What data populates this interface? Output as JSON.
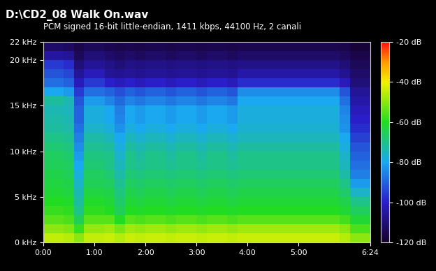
{
  "chart_data": {
    "type": "spectrogram",
    "title": "D:\\CD2_08 Walk On.wav",
    "subtitle": "PCM signed 16-bit little-endian, 1411 kbps, 44100 Hz, 2 canali",
    "x": [
      0,
      12,
      24,
      36,
      48,
      60,
      72,
      84,
      96,
      108,
      120,
      132,
      144,
      156,
      168,
      180,
      192,
      204,
      216,
      228,
      240,
      252,
      264,
      276,
      288,
      300,
      312,
      324,
      336,
      348,
      360,
      372,
      384
    ],
    "y": [
      0,
      1,
      2,
      3,
      4,
      5,
      6,
      7,
      8,
      9,
      10,
      11,
      12,
      13,
      14,
      15,
      16,
      17,
      18,
      19,
      20,
      21,
      22
    ],
    "xlim": [
      0,
      384
    ],
    "xticks": [
      {
        "value": 0,
        "label": "0:00"
      },
      {
        "value": 60,
        "label": "1:00"
      },
      {
        "value": 120,
        "label": "2:00"
      },
      {
        "value": 180,
        "label": "3:00"
      },
      {
        "value": 240,
        "label": "4:00"
      },
      {
        "value": 300,
        "label": "5:00"
      },
      {
        "value": 384,
        "label": "6:24"
      }
    ],
    "ylim": [
      0,
      22
    ],
    "yticks": [
      {
        "value": 0,
        "label": "0 kHz"
      },
      {
        "value": 5,
        "label": "5 kHz"
      },
      {
        "value": 10,
        "label": "10 kHz"
      },
      {
        "value": 15,
        "label": "15 kHz"
      },
      {
        "value": 20,
        "label": "20 kHz"
      },
      {
        "value": 22,
        "label": "22 kHz"
      }
    ],
    "colorbar": {
      "range": [
        -120,
        -20
      ],
      "ticks": [
        {
          "value": -20,
          "label": "-20 dB"
        },
        {
          "value": -40,
          "label": "-40 dB"
        },
        {
          "value": -60,
          "label": "-60 dB"
        },
        {
          "value": -80,
          "label": "-80 dB"
        },
        {
          "value": -100,
          "label": "-100 dB"
        },
        {
          "value": -120,
          "label": "-120 dB"
        }
      ]
    },
    "cells": [
      [
        -45,
        -50,
        -55,
        -58,
        -60,
        -62,
        -63,
        -64,
        -65,
        -66,
        -68,
        -70,
        -72,
        -73,
        -74,
        -72,
        -80,
        -88,
        -92,
        -96,
        -105,
        -112
      ],
      [
        -45,
        -50,
        -55,
        -58,
        -60,
        -62,
        -63,
        -64,
        -65,
        -66,
        -68,
        -70,
        -72,
        -73,
        -74,
        -72,
        -80,
        -88,
        -92,
        -96,
        -105,
        -112
      ],
      [
        -46,
        -51,
        -56,
        -59,
        -61,
        -63,
        -64,
        -65,
        -66,
        -67,
        -69,
        -71,
        -73,
        -74,
        -75,
        -74,
        -82,
        -90,
        -94,
        -98,
        -106,
        -113
      ],
      [
        -50,
        -58,
        -65,
        -70,
        -72,
        -74,
        -76,
        -78,
        -80,
        -82,
        -84,
        -86,
        -88,
        -90,
        -90,
        -92,
        -96,
        -102,
        -106,
        -110,
        -114,
        -116
      ],
      [
        -45,
        -49,
        -55,
        -59,
        -61,
        -63,
        -65,
        -66,
        -68,
        -69,
        -71,
        -73,
        -76,
        -78,
        -78,
        -82,
        -88,
        -96,
        -102,
        -106,
        -110,
        -114
      ],
      [
        -45,
        -49,
        -55,
        -59,
        -61,
        -63,
        -65,
        -66,
        -68,
        -69,
        -71,
        -73,
        -76,
        -78,
        -78,
        -82,
        -88,
        -96,
        -102,
        -106,
        -110,
        -114
      ],
      [
        -44,
        -48,
        -55,
        -60,
        -62,
        -64,
        -66,
        -68,
        -70,
        -70,
        -72,
        -75,
        -78,
        -80,
        -80,
        -85,
        -90,
        -100,
        -106,
        -108,
        -112,
        -115
      ],
      [
        -46,
        -52,
        -60,
        -65,
        -67,
        -69,
        -71,
        -73,
        -75,
        -76,
        -78,
        -80,
        -83,
        -85,
        -86,
        -89,
        -93,
        -102,
        -107,
        -110,
        -113,
        -116
      ],
      [
        -44,
        -48,
        -55,
        -60,
        -62,
        -64,
        -66,
        -68,
        -70,
        -70,
        -72,
        -75,
        -78,
        -80,
        -80,
        -85,
        -90,
        -100,
        -106,
        -108,
        -112,
        -115
      ],
      [
        -45,
        -49,
        -56,
        -61,
        -63,
        -65,
        -67,
        -69,
        -71,
        -72,
        -74,
        -77,
        -80,
        -82,
        -82,
        -87,
        -92,
        -102,
        -107,
        -109,
        -113,
        -116
      ],
      [
        -44,
        -48,
        -55,
        -60,
        -62,
        -64,
        -66,
        -68,
        -70,
        -70,
        -72,
        -75,
        -78,
        -80,
        -80,
        -85,
        -90,
        -100,
        -106,
        -108,
        -112,
        -115
      ],
      [
        -44,
        -48,
        -55,
        -60,
        -62,
        -64,
        -66,
        -68,
        -70,
        -70,
        -72,
        -75,
        -78,
        -80,
        -80,
        -85,
        -90,
        -100,
        -106,
        -108,
        -112,
        -115
      ],
      [
        -45,
        -49,
        -56,
        -61,
        -63,
        -65,
        -67,
        -69,
        -71,
        -72,
        -74,
        -77,
        -80,
        -82,
        -82,
        -87,
        -92,
        -102,
        -107,
        -109,
        -113,
        -116
      ],
      [
        -44,
        -48,
        -55,
        -60,
        -62,
        -64,
        -66,
        -68,
        -70,
        -70,
        -72,
        -75,
        -78,
        -80,
        -80,
        -85,
        -90,
        -100,
        -106,
        -108,
        -112,
        -115
      ],
      [
        -44,
        -48,
        -55,
        -60,
        -62,
        -64,
        -66,
        -68,
        -70,
        -70,
        -72,
        -75,
        -78,
        -80,
        -80,
        -85,
        -90,
        -100,
        -106,
        -108,
        -112,
        -115
      ],
      [
        -45,
        -49,
        -56,
        -61,
        -63,
        -65,
        -67,
        -69,
        -71,
        -72,
        -74,
        -77,
        -80,
        -82,
        -82,
        -87,
        -92,
        -102,
        -107,
        -109,
        -113,
        -116
      ],
      [
        -44,
        -48,
        -55,
        -60,
        -62,
        -64,
        -66,
        -68,
        -70,
        -70,
        -72,
        -75,
        -78,
        -80,
        -80,
        -85,
        -90,
        -100,
        -106,
        -108,
        -112,
        -115
      ],
      [
        -44,
        -48,
        -55,
        -60,
        -62,
        -64,
        -66,
        -68,
        -70,
        -70,
        -72,
        -75,
        -78,
        -80,
        -80,
        -85,
        -90,
        -100,
        -106,
        -108,
        -112,
        -115
      ],
      [
        -45,
        -49,
        -56,
        -61,
        -63,
        -65,
        -67,
        -69,
        -71,
        -72,
        -74,
        -77,
        -80,
        -82,
        -82,
        -87,
        -92,
        -102,
        -107,
        -109,
        -113,
        -116
      ],
      [
        -44,
        -48,
        -55,
        -60,
        -62,
        -64,
        -66,
        -68,
        -70,
        -70,
        -72,
        -75,
        -77,
        -78,
        -78,
        -80,
        -84,
        -98,
        -104,
        -108,
        -112,
        -115
      ],
      [
        -44,
        -48,
        -55,
        -60,
        -62,
        -64,
        -66,
        -68,
        -70,
        -70,
        -72,
        -75,
        -77,
        -78,
        -78,
        -80,
        -84,
        -98,
        -104,
        -108,
        -112,
        -115
      ],
      [
        -44,
        -48,
        -55,
        -60,
        -62,
        -64,
        -66,
        -68,
        -70,
        -70,
        -72,
        -75,
        -77,
        -78,
        -78,
        -80,
        -84,
        -98,
        -104,
        -108,
        -112,
        -115
      ],
      [
        -44,
        -48,
        -55,
        -60,
        -62,
        -64,
        -66,
        -68,
        -70,
        -70,
        -72,
        -75,
        -77,
        -78,
        -78,
        -80,
        -84,
        -98,
        -104,
        -108,
        -112,
        -115
      ],
      [
        -44,
        -48,
        -55,
        -60,
        -62,
        -64,
        -66,
        -68,
        -70,
        -70,
        -72,
        -75,
        -77,
        -78,
        -78,
        -80,
        -84,
        -98,
        -104,
        -108,
        -112,
        -115
      ],
      [
        -44,
        -48,
        -55,
        -60,
        -62,
        -64,
        -66,
        -68,
        -70,
        -70,
        -72,
        -75,
        -77,
        -78,
        -78,
        -80,
        -84,
        -98,
        -104,
        -108,
        -112,
        -115
      ],
      [
        -44,
        -48,
        -55,
        -60,
        -62,
        -64,
        -66,
        -68,
        -70,
        -70,
        -72,
        -75,
        -77,
        -78,
        -78,
        -80,
        -84,
        -98,
        -104,
        -108,
        -112,
        -115
      ],
      [
        -44,
        -48,
        -55,
        -60,
        -62,
        -64,
        -66,
        -68,
        -70,
        -70,
        -72,
        -75,
        -77,
        -78,
        -78,
        -80,
        -84,
        -98,
        -104,
        -108,
        -112,
        -115
      ],
      [
        -44,
        -48,
        -55,
        -60,
        -62,
        -64,
        -66,
        -68,
        -70,
        -70,
        -72,
        -75,
        -77,
        -78,
        -78,
        -80,
        -84,
        -98,
        -104,
        -108,
        -112,
        -115
      ],
      [
        -44,
        -48,
        -55,
        -60,
        -62,
        -64,
        -66,
        -68,
        -70,
        -70,
        -72,
        -75,
        -77,
        -78,
        -78,
        -80,
        -84,
        -98,
        -104,
        -108,
        -112,
        -115
      ],
      [
        -46,
        -50,
        -57,
        -62,
        -64,
        -67,
        -70,
        -73,
        -75,
        -76,
        -78,
        -80,
        -83,
        -84,
        -85,
        -88,
        -92,
        -102,
        -107,
        -110,
        -113,
        -116
      ],
      [
        -50,
        -56,
        -62,
        -66,
        -70,
        -76,
        -82,
        -86,
        -88,
        -90,
        -92,
        -95,
        -98,
        -100,
        -102,
        -104,
        -106,
        -110,
        -112,
        -114,
        -116,
        -118
      ],
      [
        -50,
        -56,
        -62,
        -66,
        -70,
        -76,
        -82,
        -86,
        -88,
        -90,
        -92,
        -95,
        -98,
        -100,
        -102,
        -104,
        -106,
        -110,
        -112,
        -114,
        -116,
        -118
      ]
    ]
  }
}
